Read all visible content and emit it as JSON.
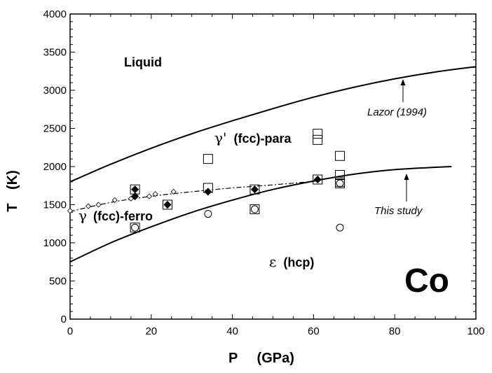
{
  "chart_data": {
    "type": "scatter",
    "title": "",
    "element_label": "Co",
    "xlabel": "P (GPa)",
    "xlabel_symbol": "P",
    "xlabel_unit": "(GPa)",
    "ylabel": "T (K)",
    "ylabel_symbol": "T",
    "ylabel_unit": "(K)",
    "xlim": [
      0,
      100
    ],
    "ylim": [
      0,
      4000
    ],
    "xticks": [
      0,
      20,
      40,
      60,
      80,
      100
    ],
    "yticks": [
      0,
      500,
      1000,
      1500,
      2000,
      2500,
      3000,
      3500,
      4000
    ],
    "grid": false,
    "regions": {
      "liquid": "Liquid",
      "gamma_para": {
        "symbol": "γ'",
        "text": "(fcc)-para"
      },
      "gamma_ferro": {
        "symbol": "γ",
        "text": "(fcc)-ferro"
      },
      "epsilon": {
        "symbol": "ε",
        "text": "(hcp)"
      }
    },
    "annotations": {
      "lazor": "Lazor (1994)",
      "this_study": "This study"
    },
    "lines": [
      {
        "name": "Lazor (1994) melting curve",
        "style": "solid",
        "x": [
          0,
          10,
          20,
          30,
          40,
          50,
          60,
          70,
          80,
          90,
          100
        ],
        "y": [
          1800,
          2030,
          2240,
          2430,
          2600,
          2760,
          2910,
          3040,
          3150,
          3240,
          3310
        ]
      },
      {
        "name": "This study (gamma/epsilon boundary)",
        "style": "solid",
        "x": [
          0,
          10,
          20,
          30,
          40,
          50,
          60,
          70,
          80,
          94
        ],
        "y": [
          750,
          1000,
          1210,
          1400,
          1560,
          1700,
          1810,
          1900,
          1960,
          2000
        ]
      },
      {
        "name": "Curie transition",
        "style": "dashdot",
        "x": [
          0,
          10,
          20,
          30,
          40,
          50,
          61
        ],
        "y": [
          1410,
          1530,
          1610,
          1670,
          1720,
          1760,
          1810
        ]
      }
    ],
    "series": [
      {
        "name": "gamma' fcc-para",
        "marker": "open-square",
        "x": [
          16,
          34,
          34,
          45.5,
          61,
          61,
          61,
          66.5,
          66.5,
          66.5,
          66.5
        ],
        "y": [
          1700,
          2100,
          1720,
          1700,
          2430,
          2350,
          1830,
          2140,
          1890,
          1800,
          1780
        ]
      },
      {
        "name": "gamma fcc-ferro",
        "marker": "filled-diamond",
        "x": [
          16,
          16,
          24,
          34,
          45.5,
          61
        ],
        "y": [
          1700,
          1610,
          1500,
          1670,
          1700,
          1830
        ]
      },
      {
        "name": "epsilon hcp",
        "marker": "open-circle",
        "x": [
          16,
          34,
          45.5,
          66.5,
          66.5
        ],
        "y": [
          1200,
          1380,
          1440,
          1780,
          1200
        ]
      },
      {
        "name": "open squares (lower)",
        "marker": "open-square",
        "x": [
          16,
          24,
          45.5
        ],
        "y": [
          1200,
          1500,
          1440
        ]
      },
      {
        "name": "Curie points",
        "marker": "open-diamond-small",
        "x": [
          0,
          4.5,
          7,
          11,
          15,
          19.5,
          21,
          25.5
        ],
        "y": [
          1420,
          1480,
          1500,
          1560,
          1580,
          1610,
          1640,
          1670
        ]
      }
    ]
  }
}
